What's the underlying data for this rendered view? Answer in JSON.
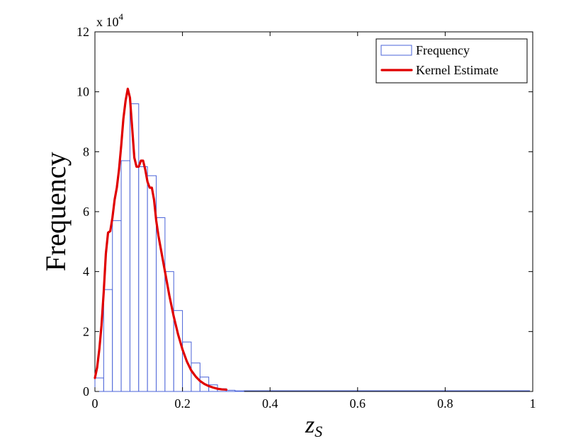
{
  "chart_data": {
    "type": "bar",
    "xlabel": "z",
    "xlabel_subscript": "S",
    "ylabel": "Frequency",
    "y_scale_label": "x 10",
    "y_scale_exponent": "4",
    "xlim": [
      0,
      1
    ],
    "ylim": [
      0,
      120000
    ],
    "xticks": [
      0,
      0.2,
      0.4,
      0.6,
      0.8,
      1
    ],
    "xtick_labels": [
      "0",
      "0.2",
      "0.4",
      "0.6",
      "0.8",
      "1"
    ],
    "yticks": [
      0,
      20000,
      40000,
      60000,
      80000,
      100000,
      120000
    ],
    "ytick_labels": [
      "0",
      "2",
      "4",
      "6",
      "8",
      "10",
      "12"
    ],
    "grid": false,
    "legend_placement": "top-right",
    "bin_width": 0.02,
    "bin_starts": [
      0.0,
      0.02,
      0.04,
      0.06,
      0.08,
      0.1,
      0.12,
      0.14,
      0.16,
      0.18,
      0.2,
      0.22,
      0.24,
      0.26,
      0.28,
      0.3,
      0.32
    ],
    "series": [
      {
        "name": "Frequency",
        "type": "histogram",
        "values": [
          4500,
          34000,
          57000,
          77000,
          96000,
          75000,
          72000,
          58000,
          40000,
          27000,
          16500,
          9500,
          4800,
          2200,
          900,
          400,
          200
        ]
      },
      {
        "name": "Kernel Estimate",
        "type": "line",
        "x": [
          0.0,
          0.005,
          0.01,
          0.015,
          0.02,
          0.025,
          0.03,
          0.035,
          0.04,
          0.045,
          0.05,
          0.055,
          0.06,
          0.065,
          0.07,
          0.075,
          0.08,
          0.085,
          0.09,
          0.095,
          0.1,
          0.105,
          0.11,
          0.115,
          0.12,
          0.125,
          0.13,
          0.135,
          0.14,
          0.145,
          0.15,
          0.16,
          0.17,
          0.18,
          0.19,
          0.2,
          0.21,
          0.22,
          0.23,
          0.24,
          0.25,
          0.26,
          0.27,
          0.28,
          0.29,
          0.3
        ],
        "y": [
          4500,
          8000,
          14000,
          22000,
          33000,
          46000,
          53000,
          53500,
          58000,
          64000,
          68000,
          74000,
          82000,
          91000,
          97000,
          101000,
          98000,
          88000,
          78000,
          75000,
          75000,
          77000,
          77000,
          74000,
          70000,
          68000,
          68000,
          64000,
          57000,
          52000,
          48000,
          40000,
          32000,
          25000,
          19000,
          14000,
          10000,
          7000,
          5000,
          3500,
          2500,
          1800,
          1300,
          900,
          700,
          600
        ]
      }
    ],
    "colors": {
      "histogram_edge": "#4a63d8",
      "kernel_line": "#e00000",
      "axis": "#000000"
    }
  }
}
